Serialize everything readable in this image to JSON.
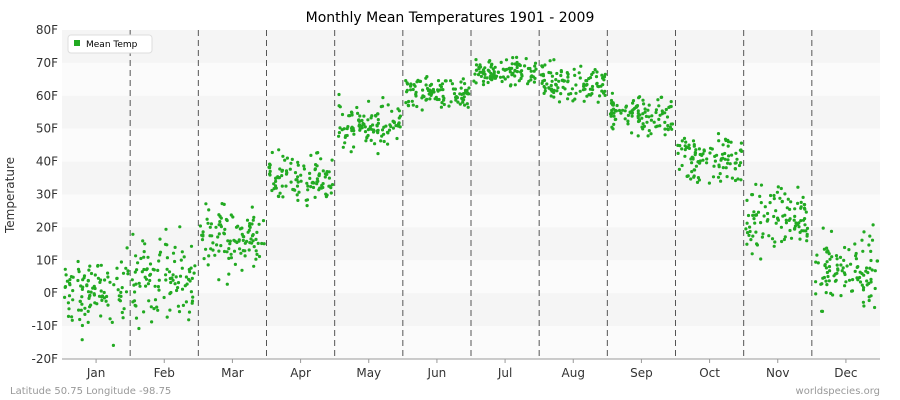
{
  "chart_data": {
    "type": "scatter",
    "title": "Monthly Mean Temperatures 1901 - 2009",
    "ylabel": "Temperature",
    "xlabel": "",
    "categories": [
      "Jan",
      "Feb",
      "Mar",
      "Apr",
      "May",
      "Jun",
      "Jul",
      "Aug",
      "Sep",
      "Oct",
      "Nov",
      "Dec"
    ],
    "y_ticks": [
      "-20F",
      "-10F",
      "0F",
      "10F",
      "20F",
      "30F",
      "40F",
      "50F",
      "60F",
      "70F",
      "80F"
    ],
    "ylim": [
      -20,
      80
    ],
    "grid": "alternating horizontal bands, dashed vertical month separators",
    "legend": {
      "position": "top-left"
    },
    "series": [
      {
        "name": "Mean Temp",
        "color": "#22aa22",
        "years": [
          1901,
          2009
        ],
        "monthly_summary": [
          {
            "month": "Jan",
            "mean": 0,
            "min": -18,
            "max": 15
          },
          {
            "month": "Feb",
            "mean": 4,
            "min": -15,
            "max": 21
          },
          {
            "month": "Mar",
            "mean": 17,
            "min": 2,
            "max": 29
          },
          {
            "month": "Apr",
            "mean": 35,
            "min": 26,
            "max": 46
          },
          {
            "month": "May",
            "mean": 50,
            "min": 42,
            "max": 63
          },
          {
            "month": "Jun",
            "mean": 61,
            "min": 54,
            "max": 68
          },
          {
            "month": "Jul",
            "mean": 67,
            "min": 61,
            "max": 72
          },
          {
            "month": "Aug",
            "mean": 64,
            "min": 58,
            "max": 71
          },
          {
            "month": "Sep",
            "mean": 54,
            "min": 46,
            "max": 63
          },
          {
            "month": "Oct",
            "mean": 41,
            "min": 30,
            "max": 52
          },
          {
            "month": "Nov",
            "mean": 23,
            "min": 9,
            "max": 34
          },
          {
            "month": "Dec",
            "mean": 7,
            "min": -8,
            "max": 23
          }
        ]
      }
    ]
  },
  "footer": {
    "left": "Latitude 50.75 Longitude -98.75",
    "right": "worldspecies.org"
  }
}
